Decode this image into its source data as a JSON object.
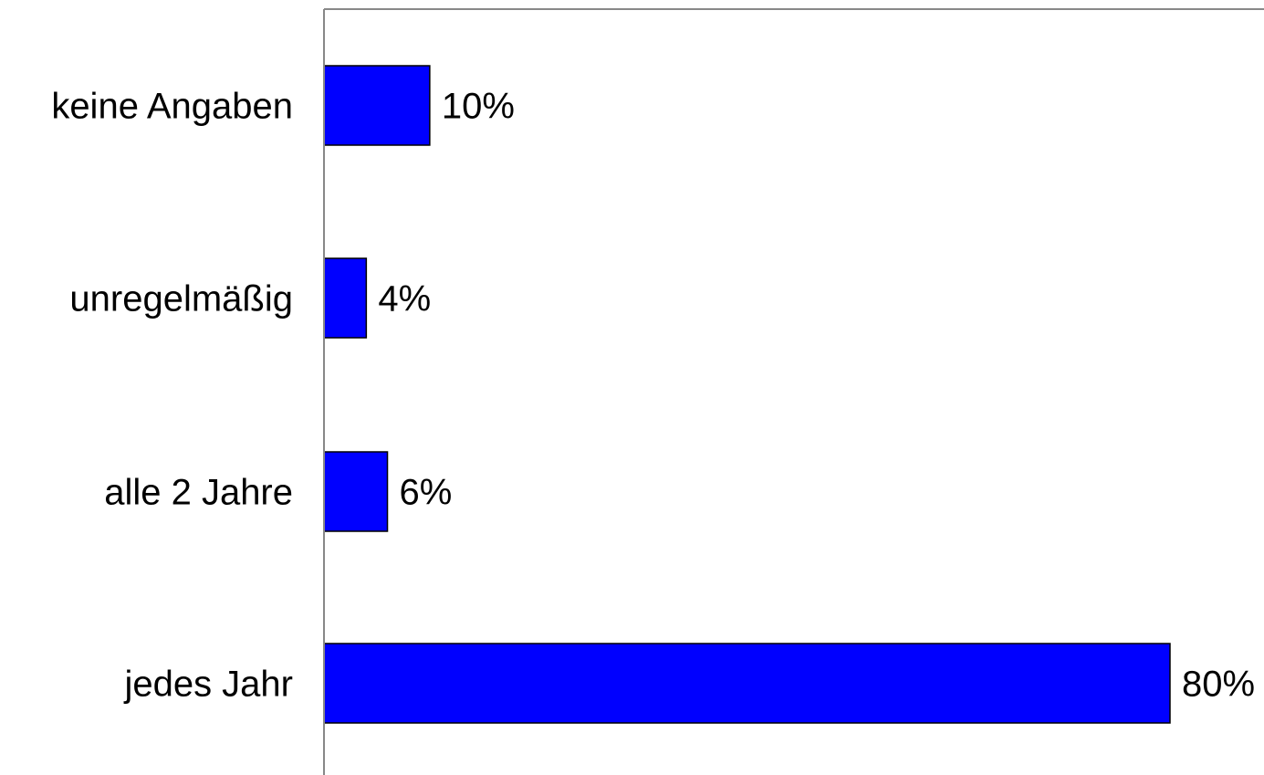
{
  "chart_data": {
    "type": "bar",
    "orientation": "horizontal",
    "categories": [
      "keine Angaben",
      "unregelmäßig",
      "alle 2 Jahre",
      "jedes Jahr"
    ],
    "values": [
      10,
      4,
      6,
      80
    ],
    "value_labels": [
      "10%",
      "4%",
      "6%",
      "80%"
    ],
    "unit": "%",
    "xlim": [
      0,
      80
    ],
    "bar_color": "#0000ff",
    "grid": false,
    "legend": "none",
    "title": "",
    "xlabel": "",
    "ylabel": ""
  }
}
